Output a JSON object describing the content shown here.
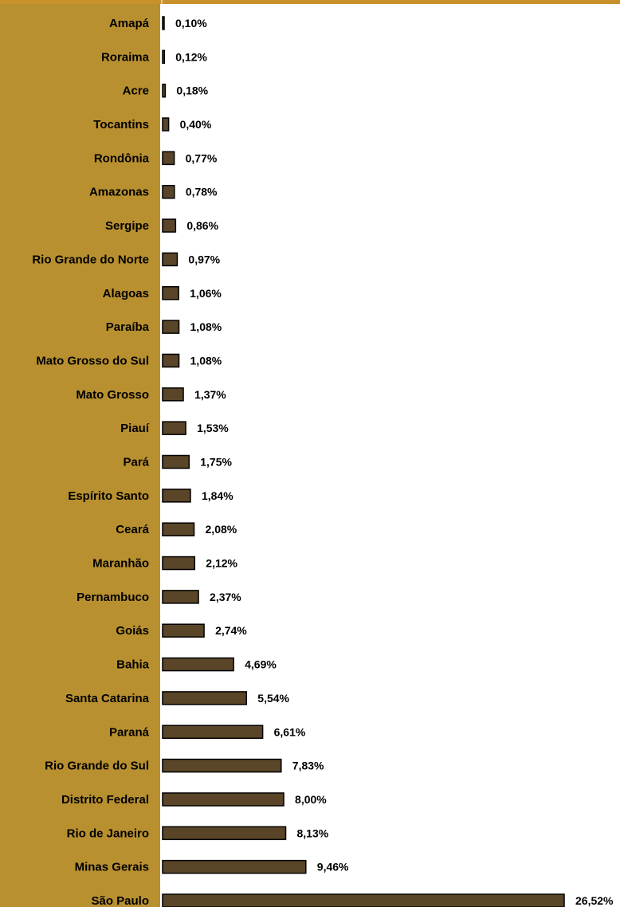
{
  "chart_data": {
    "type": "bar",
    "orientation": "horizontal",
    "title": "",
    "xlabel": "",
    "ylabel": "",
    "xlim": [
      0,
      27
    ],
    "grid": false,
    "legend": "none",
    "colors": {
      "bar_fill": "#5a4528",
      "bar_stroke": "#000000",
      "label_panel": "#b8902f",
      "plot_background": "#ffffff",
      "top_border": "#c8912c"
    },
    "categories": [
      "Amapá",
      "Roraima",
      "Acre",
      "Tocantins",
      "Rondônia",
      "Amazonas",
      "Sergipe",
      "Rio Grande do Norte",
      "Alagoas",
      "Paraíba",
      "Mato Grosso do Sul",
      "Mato Grosso",
      "Piauí",
      "Pará",
      "Espírito Santo",
      "Ceará",
      "Maranhão",
      "Pernambuco",
      "Goiás",
      "Bahia",
      "Santa Catarina",
      "Paraná",
      "Rio Grande do Sul",
      "Distrito Federal",
      "Rio de Janeiro",
      "Minas Gerais",
      "São Paulo"
    ],
    "values": [
      0.1,
      0.12,
      0.18,
      0.4,
      0.77,
      0.78,
      0.86,
      0.97,
      1.06,
      1.08,
      1.08,
      1.37,
      1.53,
      1.75,
      1.84,
      2.08,
      2.12,
      2.37,
      2.74,
      4.69,
      5.54,
      6.61,
      7.83,
      8.0,
      8.13,
      9.46,
      26.52
    ],
    "value_labels": [
      "0,10%",
      "0,12%",
      "0,18%",
      "0,40%",
      "0,77%",
      "0,78%",
      "0,86%",
      "0,97%",
      "1,06%",
      "1,08%",
      "1,08%",
      "1,37%",
      "1,53%",
      "1,75%",
      "1,84%",
      "2,08%",
      "2,12%",
      "2,37%",
      "2,74%",
      "4,69%",
      "5,54%",
      "6,61%",
      "7,83%",
      "8,00%",
      "8,13%",
      "9,46%",
      "26,52%"
    ]
  }
}
